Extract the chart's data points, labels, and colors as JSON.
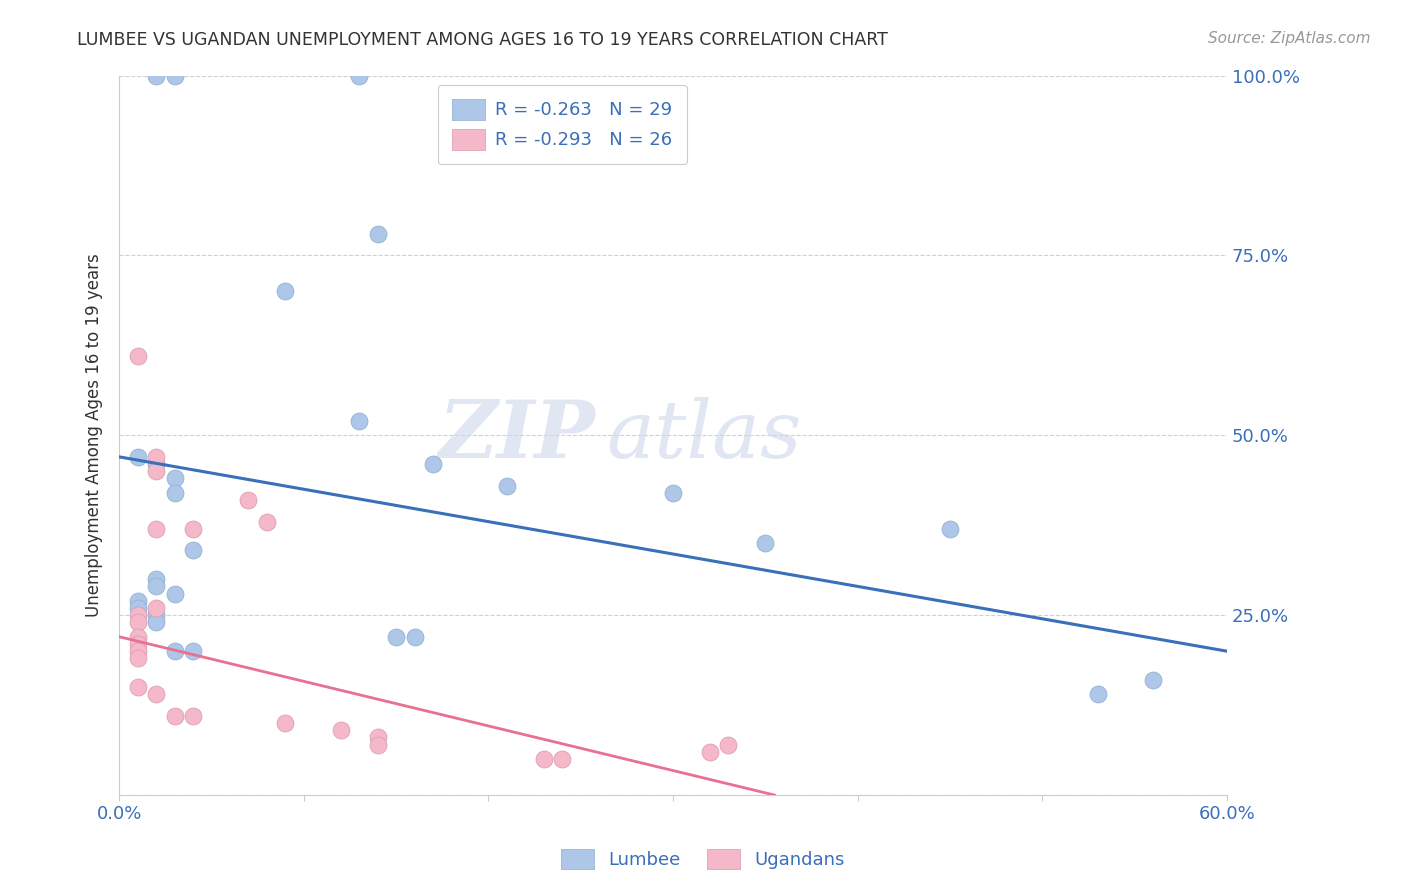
{
  "title": "LUMBEE VS UGANDAN UNEMPLOYMENT AMONG AGES 16 TO 19 YEARS CORRELATION CHART",
  "source": "Source: ZipAtlas.com",
  "ylabel": "Unemployment Among Ages 16 to 19 years",
  "xlim": [
    0.0,
    0.6
  ],
  "ylim": [
    0.0,
    1.0
  ],
  "xticks": [
    0.0,
    0.1,
    0.2,
    0.3,
    0.4,
    0.5,
    0.6
  ],
  "xticklabels": [
    "0.0%",
    "",
    "",
    "",
    "",
    "",
    "60.0%"
  ],
  "yticks": [
    0.0,
    0.25,
    0.5,
    0.75,
    1.0
  ],
  "yticklabels": [
    "",
    "25.0%",
    "50.0%",
    "75.0%",
    "100.0%"
  ],
  "lumbee_R": -0.263,
  "lumbee_N": 29,
  "ugandan_R": -0.293,
  "ugandan_N": 26,
  "lumbee_color": "#aec6e8",
  "ugandan_color": "#f4b8c8",
  "lumbee_line_color": "#3a6fba",
  "ugandan_line_color": "#e87090",
  "lumbee_x": [
    0.02,
    0.03,
    0.13,
    0.01,
    0.02,
    0.03,
    0.03,
    0.01,
    0.01,
    0.02,
    0.02,
    0.04,
    0.14,
    0.09,
    0.13,
    0.17,
    0.21,
    0.3,
    0.35,
    0.15,
    0.16,
    0.45,
    0.53,
    0.56,
    0.02,
    0.03,
    0.04,
    0.02,
    0.03
  ],
  "lumbee_y": [
    1.0,
    1.0,
    1.0,
    0.47,
    0.46,
    0.44,
    0.42,
    0.27,
    0.26,
    0.25,
    0.24,
    0.34,
    0.78,
    0.7,
    0.52,
    0.46,
    0.43,
    0.42,
    0.35,
    0.22,
    0.22,
    0.37,
    0.14,
    0.16,
    0.3,
    0.2,
    0.2,
    0.29,
    0.28
  ],
  "ugandan_x": [
    0.01,
    0.01,
    0.01,
    0.01,
    0.01,
    0.01,
    0.01,
    0.02,
    0.02,
    0.02,
    0.02,
    0.02,
    0.03,
    0.04,
    0.04,
    0.07,
    0.08,
    0.09,
    0.12,
    0.14,
    0.14,
    0.23,
    0.24,
    0.32,
    0.33,
    0.01
  ],
  "ugandan_y": [
    0.61,
    0.25,
    0.24,
    0.22,
    0.21,
    0.2,
    0.15,
    0.47,
    0.45,
    0.37,
    0.26,
    0.14,
    0.11,
    0.37,
    0.11,
    0.41,
    0.38,
    0.1,
    0.09,
    0.08,
    0.07,
    0.05,
    0.05,
    0.06,
    0.07,
    0.19
  ],
  "lumbee_line_x0": 0.0,
  "lumbee_line_y0": 0.47,
  "lumbee_line_x1": 0.6,
  "lumbee_line_y1": 0.2,
  "ugandan_line_x0": 0.0,
  "ugandan_line_y0": 0.22,
  "ugandan_line_x1": 0.355,
  "ugandan_line_y1": 0.0,
  "watermark_zip": "ZIP",
  "watermark_atlas": "atlas",
  "background_color": "#ffffff",
  "grid_color": "#d0d0d0",
  "tick_color": "#3a6fba",
  "ylabel_color": "#333333",
  "title_color": "#333333",
  "source_color": "#999999"
}
